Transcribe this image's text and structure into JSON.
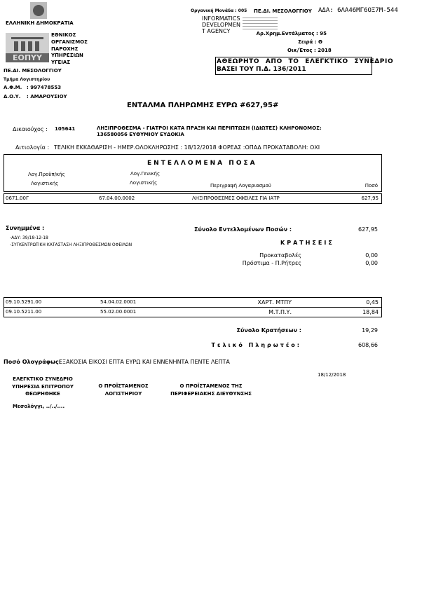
{
  "header": {
    "country": "ΕΛΛΗΝΙΚΗ ΔΗΜΟΚΡΑΤΙΑ",
    "org_lines": [
      "ΕΘΝΙΚΟΣ",
      "ΟΡΓΑΝΙΣΜΟΣ",
      "ΠΑΡΟΧΗΣ",
      "ΥΠΗΡΕΣΙΩΝ",
      "ΥΓΕΙΑΣ"
    ],
    "logo_text": "ΕΟΠΥΥ",
    "unit": "ΠΕ.ΔΙ. ΜΕΣΟΛΟΓΓΙΟΥ",
    "department": "Τμήμα Λογιστηρίου",
    "afm_label": "Α.Φ.Μ.",
    "afm_value": ": 997478553",
    "doy_label": "Δ.Ο.Υ.",
    "doy_value": ": ΑΜΑΡΟΥΣΙΟΥ"
  },
  "meta": {
    "org_unit": "Οργανική Μονάδα : 005",
    "org_unit_name": "ΠΕ.ΔΙ. ΜΕΣΟΛΟΓΓΙΟΥ",
    "ada": "ΑΔΑ: 6ΛΑ46ΜΓ6ΟΞ7Μ-544",
    "agency_lines": [
      "INFORMATICS",
      "DEVELOPMEN",
      "T AGENCY"
    ],
    "warrant_no": "Αρ.Χρημ.Εντάλματος : 95",
    "series": "Σειρά : Θ",
    "fiscal_year": "Οικ/Έτος : 2018",
    "notice": [
      "ΑΘΕΩΡΗΤΟ ΑΠΟ ΤΟ ΕΛΕΓΚΤΙΚΟ ΣΥΝΕΔΡΙΟ",
      "ΒΑΣΕΙ ΤΟΥ Π.Δ. 136/2011"
    ]
  },
  "title": "ΕΝΤΑΛΜΑ ΠΛΗΡΩΜΗΣ ΕΥΡΩ #627,95#",
  "beneficiary": {
    "label": "Δικαιούχος :",
    "code": "105641",
    "line1": "ΛΗΞΙΠΡΟΘΕΣΜΑ - ΓΙΑΤΡΟΙ ΚΑΤΑ ΠΡΑΞΗ ΚΑΙ ΠΕΡΙΠΤΩΣΗ (ΙΔΙΩΤΕΣ) ΚΛΗΡΟΝΟΜΟΣ:",
    "line2": "136580056 ΕΥΘΥΜΙΟΥ ΕΥΔΟΚΙΑ"
  },
  "reason": {
    "label": "Αιτιολογία :",
    "text": "ΤΕΛΙΚΗ ΕΚΚΑΘΑΡΙΣΗ - ΗΜΕΡ.ΟΛΟΚΛΗΡΩΣΗΣ : 18/12/2018 ΦΟΡΕΑΣ :ΟΠΑΔ  ΠΡΟΚΑΤΑΒΟΛΗ: ΟΧΙ"
  },
  "amounts": {
    "title": "ΕΝΤΕΛΛΟΜΕΝΑ ΠΟΣΑ",
    "col_budget": [
      "Λογ.Προϋπ/κής",
      "Λογιστικής"
    ],
    "col_general": [
      "Λογ.Γενικής",
      "Λογιστικής"
    ],
    "col_desc": "Περιγραφή Λογαριασμού",
    "col_amount": "Ποσό",
    "rows": [
      {
        "budget": "0671.00Γ",
        "general": "67.04.00.0002",
        "desc": "ΛΗΞΙΠΡΟΘΕΣΜΕΣ ΟΦΕΙΛΕΣ ΓΙΑ ΙΑΤΡ",
        "amount": "627,95"
      }
    ]
  },
  "attachments": {
    "label": "Συνημμένα :",
    "items": [
      "-ΑΔΥ: 39/18-12-18",
      "-ΣΥΓΚΕΝΤΡΩΤΙΚΗ ΚΑΤΑΣΤΑΣΗ ΛΗΞΙΠΡΟΘΕΣΜΩΝ ΟΦΕΙΛΩΝ"
    ]
  },
  "totals": {
    "ordered_label": "Σύνολο Εντελλομένων Ποσών :",
    "ordered_value": "627,95",
    "deductions_title": "ΚΡΑΤΗΣΕΙΣ",
    "advances_label": "Προκαταβολές",
    "advances_value": "0,00",
    "penalties_label": "Πρόστιμα - Π.Ρήτρες",
    "penalties_value": "0,00",
    "deductions_label": "Σύνολο Κρατήσεων :",
    "deductions_value": "19,29",
    "final_label": "Τελικό  Πληρωτέο:",
    "final_value": "608,66"
  },
  "deductions": [
    {
      "budget": "09.10.5291.00",
      "general": "54.04.02.0001",
      "desc": "ΧΑΡΤ. ΜΤΠΥ",
      "amount": "0,45"
    },
    {
      "budget": "09.10.5211.00",
      "general": "55.02.00.0001",
      "desc": "Μ.Τ.Π.Υ.",
      "amount": "18,84"
    }
  ],
  "words": {
    "label": "Ποσό Ολογράφως:",
    "text": "ΕΞΑΚΟΣΙΑ ΕΙΚΟΣΙ ΕΠΤΑ ΕΥΡΩ ΚΑΙ ΕΝΝΕΝΗΝΤΑ ΠΕΝΤΕ ΛΕΠΤΑ"
  },
  "signatures": {
    "date": "18/12/2018",
    "audit": [
      "ΕΛΕΓΚΤΙΚΟ ΣΥΝΕΔΡΙΟ",
      "ΥΠΗΡΕΣΙΑ ΕΠΙΤΡΟΠΟΥ",
      "ΘΕΩΡΗΘΗΚΕ"
    ],
    "accounting": [
      "Ο ΠΡΟΪΣΤΑΜΕΝΟΣ",
      "ΛΟΓΙΣΤΗΡΙΟΥ"
    ],
    "regional": [
      "Ο ΠΡΟΪΣΤΑΜΕΝΟΣ ΤΗΣ",
      "ΠΕΡΙΦΕΡΕΙΑΚΗΣ ΔΙΕΥΘΥΝΣΗΣ"
    ],
    "place": "Μεσολόγγι, ../../...."
  }
}
